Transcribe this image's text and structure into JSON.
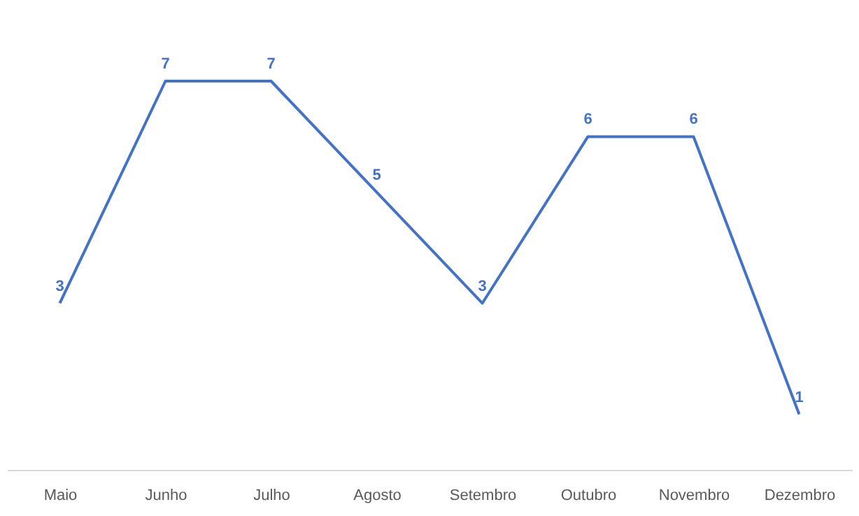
{
  "chart_data": {
    "type": "line",
    "categories": [
      "Maio",
      "Junho",
      "Julho",
      "Agosto",
      "Setembro",
      "Outubro",
      "Novembro",
      "Dezembro"
    ],
    "series": [
      {
        "color": "#4472c4",
        "values": [
          3,
          7,
          7,
          5,
          3,
          6,
          6,
          1
        ]
      }
    ],
    "data_labels": true,
    "grid": false,
    "legend": false,
    "marker": "none",
    "line_style": "solid"
  }
}
